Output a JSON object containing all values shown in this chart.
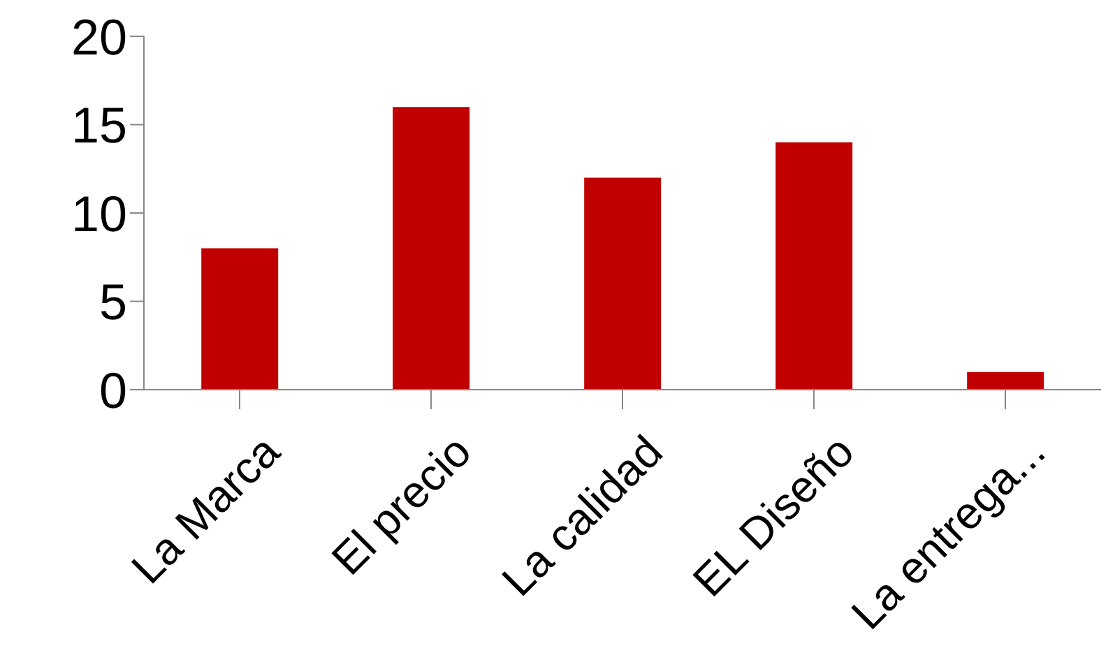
{
  "chart_data": {
    "type": "bar",
    "categories": [
      "La Marca",
      "El precio",
      "La calidad",
      "EL Diseño",
      "La entrega..."
    ],
    "values": [
      8,
      16,
      12,
      14,
      1
    ],
    "color": "#c00000",
    "ylim": [
      0,
      20
    ],
    "yticks": [
      0,
      5,
      10,
      15,
      20
    ]
  }
}
